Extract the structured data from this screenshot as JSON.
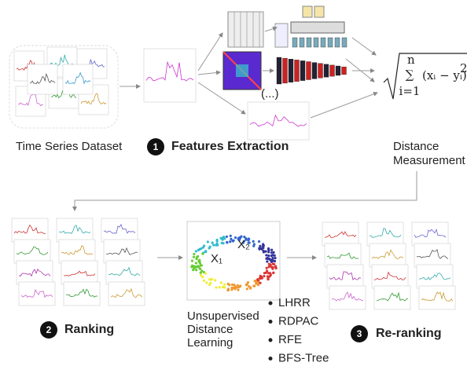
{
  "dataset_label": "Time Series Dataset",
  "step1": {
    "number": "1",
    "label": "Features Extraction"
  },
  "ellipsis": "(...)",
  "formula": {
    "upper": "n",
    "symbol": "∑",
    "lower": "i=1",
    "term": "(xᵢ − yᵢ)",
    "power": "2"
  },
  "distance_label": [
    "Distance",
    "Measurement"
  ],
  "step2": {
    "number": "2",
    "label": "Ranking"
  },
  "points": [
    "X₁",
    "X₂"
  ],
  "udl_label": [
    "Unsupervised",
    "Distance",
    "Learning"
  ],
  "methods": [
    "LHRR",
    "RDPAC",
    "RFE",
    "BFS-Tree"
  ],
  "step3": {
    "number": "3",
    "label": "Re-ranking"
  }
}
